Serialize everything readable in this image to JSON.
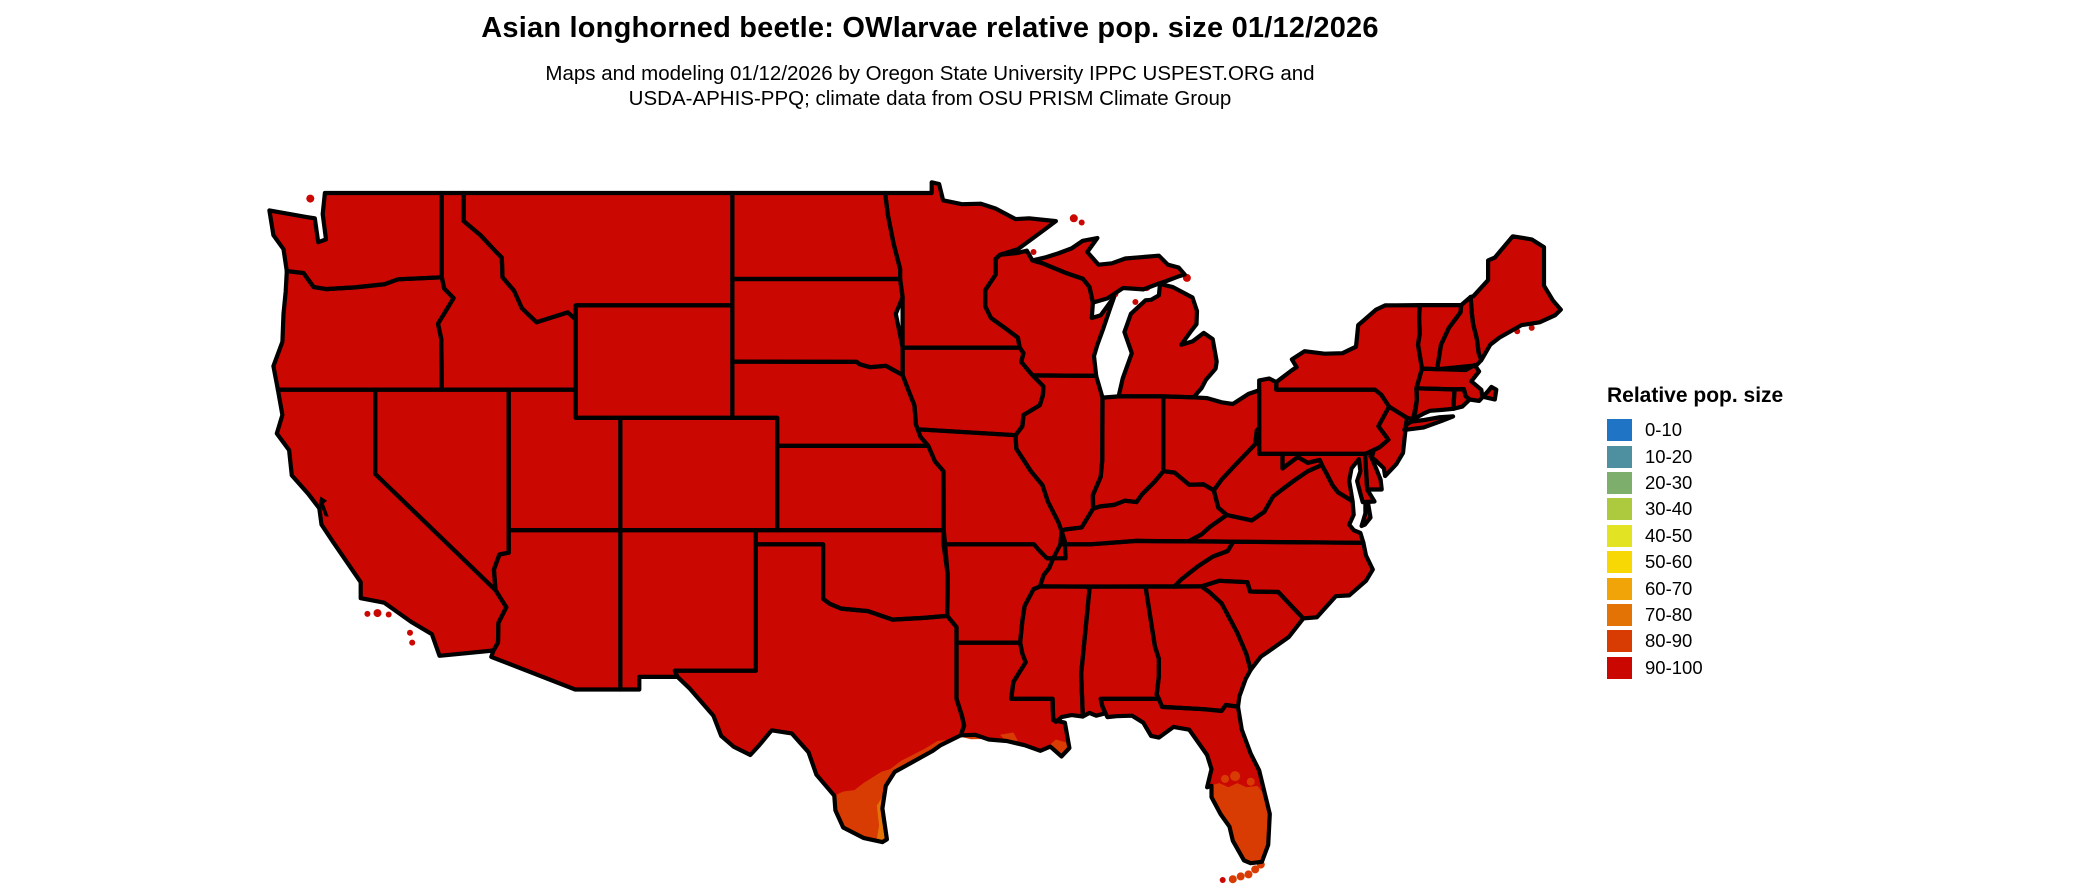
{
  "header": {
    "title": "Asian longhorned beetle: OWlarvae relative pop. size 01/12/2026",
    "subtitle_line1": "Maps and modeling 01/12/2026 by Oregon State University IPPC USPEST.ORG and",
    "subtitle_line2": "USDA-APHIS-PPQ; climate data from OSU PRISM Climate Group"
  },
  "legend": {
    "title": "Relative pop. size",
    "items": [
      {
        "label": "0-10",
        "color": "#1f74c5"
      },
      {
        "label": "10-20",
        "color": "#4e8fa0"
      },
      {
        "label": "20-30",
        "color": "#7eae6b"
      },
      {
        "label": "30-40",
        "color": "#adc93e"
      },
      {
        "label": "40-50",
        "color": "#e2e322"
      },
      {
        "label": "50-60",
        "color": "#f8d804"
      },
      {
        "label": "60-70",
        "color": "#f0a407"
      },
      {
        "label": "70-80",
        "color": "#e47306"
      },
      {
        "label": "80-90",
        "color": "#d93c03"
      },
      {
        "label": "90-100",
        "color": "#cb0701"
      }
    ]
  },
  "map": {
    "base_category": "90-100",
    "border_color": "#000000",
    "water_color": "#ffffff",
    "regions": [
      {
        "name": "continental-us",
        "category": "90-100"
      },
      {
        "name": "south-texas",
        "category": "80-90"
      },
      {
        "name": "lower-texas-coast",
        "category": "70-80"
      },
      {
        "name": "upper-texas-coast",
        "category": "80-90"
      },
      {
        "name": "south-florida",
        "category": "80-90"
      },
      {
        "name": "florida-keys",
        "category": "80-90"
      },
      {
        "name": "louisiana-delta-coast",
        "category": "80-90"
      }
    ]
  }
}
